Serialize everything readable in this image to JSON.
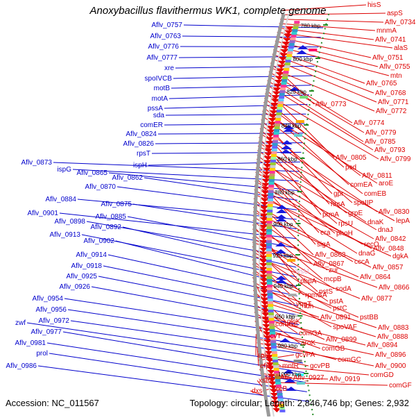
{
  "title": "Anoxybacillus flavithermus WK1, complete genome",
  "accession": "Accession: NC_011567",
  "stats": "Topology: circular; Length: 2,846,746 bp; Genes: 2,932",
  "colors": {
    "left_labels": "#0000cc",
    "right_labels": "#dd0000",
    "faded_label": "#e6a8c8",
    "ticks": "#228b22"
  },
  "scale": [
    {
      "label": "780 kbp"
    },
    {
      "label": "800 kbp"
    },
    {
      "label": "820 kbp"
    },
    {
      "label": "840 kbp"
    },
    {
      "label": "860 kbp"
    },
    {
      "label": "880 kbp"
    },
    {
      "label": "900 kbp"
    },
    {
      "label": "920 kbp"
    },
    {
      "label": "940 kbp"
    },
    {
      "label": "960 kbp"
    },
    {
      "label": "980 kbp"
    },
    {
      "label": "1000 kbp"
    }
  ],
  "left_labels": [
    "Aflv_0757",
    "Aflv_0763",
    "Aflv_0776",
    "Aflv_0777",
    "xre",
    "spoIVCB",
    "motB",
    "motA",
    "pssA",
    "sda",
    "comER",
    "Aflv_0824",
    "Aflv_0826",
    "rpsT",
    "ispH",
    "Aflv_0873",
    "ispG",
    "Aflv_0865",
    "Aflv_0862",
    "Aflv_0870",
    "Aflv_0884",
    "Aflv_0875",
    "Aflv_0901",
    "Aflv_0885",
    "Aflv_0898",
    "Aflv_0892",
    "Aflv_0913",
    "Aflv_0902",
    "Aflv_0914",
    "Aflv_0918",
    "Aflv_0925",
    "Aflv_0926",
    "Aflv_0954",
    "Aflv_0956",
    "Aflv_0972",
    "zwf",
    "Aflv_0977",
    "Aflv_0981",
    "prol",
    "Aflv_0986"
  ],
  "right_labels": [
    "hisS",
    "aspS",
    "Aflv_0734",
    "mnmA",
    "Aflv_0741",
    "alaS",
    "Aflv_0751",
    "Aflv_0755",
    "mtn",
    "Aflv_0765",
    "Aflv_0768",
    "Aflv_0771",
    "Aflv_0773",
    "Aflv_0772",
    "Aflv_0774",
    "Aflv_0779",
    "Aflv_0785",
    "Aflv_0793",
    "Aflv_0805",
    "Aflv_0799",
    "psd",
    "Aflv_0811",
    "comEA",
    "aroE",
    "comEB",
    "gpr",
    "spoIIP",
    "hrcA",
    "Aflv_0830",
    "prmA",
    "grpE",
    "lepA",
    "dnaK",
    "rpsU",
    "dnaJ",
    "era",
    "phoH",
    "Aflv_0842",
    "sigA",
    "recO",
    "Aflv_0848",
    "dnaG",
    "dgkA",
    "Aflv_0863",
    "cccA",
    "Aflv_0867",
    "Aflv_0857",
    "zur",
    "mcpB",
    "pbpA",
    "Aflv_0864",
    "pstS",
    "sodA",
    "Aflv_0866",
    "rpmGA",
    "pstA",
    "Aflv_0877",
    "ldh",
    "pstC",
    "yqgT",
    "pstBB",
    "comGE",
    "spoVAF",
    "Aflv_0883",
    "glcK",
    "Aflv_0891",
    "Aflv_0888",
    "comGA",
    "Aflv_0899",
    "aroK",
    "Aflv_0894",
    "gcvT",
    "comGB",
    "Aflv_0896",
    "splB",
    "comGC",
    "Aflv_0900",
    "efp",
    "mntR",
    "gcvPB",
    "gcvPA",
    "comGD",
    "spoIIAE",
    "Aflv_0927",
    "Aflv_0919",
    "comGF",
    "xseA",
    "accB",
    "dxs"
  ],
  "faded_label": "lysU"
}
